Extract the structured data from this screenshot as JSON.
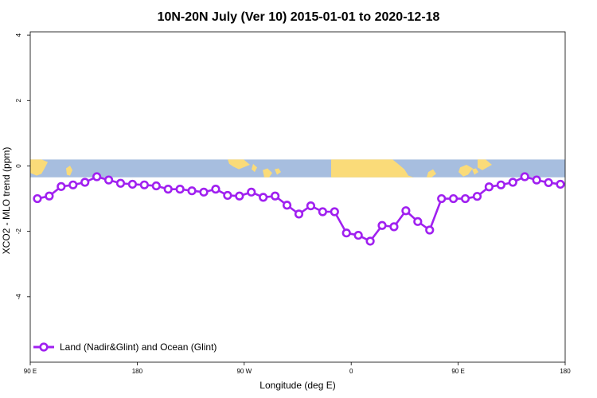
{
  "chart_data": {
    "type": "line",
    "title": "10N-20N July (Ver 10)   2015-01-01 to 2020-12-18",
    "xlabel": "Longitude (deg E)",
    "ylabel": "XCO2 - MLO trend (ppm)",
    "x_ticks": [
      {
        "value": 90,
        "label": "90 E"
      },
      {
        "value": 180,
        "label": "180"
      },
      {
        "value": 270,
        "label": "90 W"
      },
      {
        "value": 360,
        "label": "0"
      },
      {
        "value": 450,
        "label": "90 E"
      },
      {
        "value": 540,
        "label": "180"
      }
    ],
    "y_ticks": [
      -4,
      -2,
      0,
      2,
      4
    ],
    "xlim": [
      90,
      540
    ],
    "ylim": [
      -6,
      4.1
    ],
    "map_band": {
      "ymin": -0.35,
      "ymax": 0.2,
      "ocean_color": "#a7bedf",
      "land_color": "#fadb79"
    },
    "series": [
      {
        "name": "Land (Nadir&Glint) and Ocean (Glint)",
        "color": "#a020f0",
        "x": [
          96,
          106,
          116,
          126,
          136,
          146,
          156,
          166,
          176,
          186,
          196,
          206,
          216,
          226,
          236,
          246,
          256,
          266,
          276,
          286,
          296,
          306,
          316,
          326,
          336,
          346,
          356,
          366,
          376,
          386,
          396,
          406,
          416,
          426,
          436,
          446,
          456,
          466,
          476,
          486,
          496,
          506,
          516,
          526,
          536
        ],
        "y": [
          -1.0,
          -0.92,
          -0.63,
          -0.58,
          -0.5,
          -0.33,
          -0.43,
          -0.53,
          -0.56,
          -0.58,
          -0.61,
          -0.71,
          -0.71,
          -0.76,
          -0.8,
          -0.71,
          -0.9,
          -0.92,
          -0.8,
          -0.96,
          -0.92,
          -1.2,
          -1.47,
          -1.22,
          -1.4,
          -1.4,
          -2.05,
          -2.12,
          -2.3,
          -1.82,
          -1.86,
          -1.37,
          -1.7,
          -1.96,
          -1.0,
          -1.0,
          -1.0,
          -0.93,
          -0.64,
          -0.58,
          -0.5,
          -0.33,
          -0.43,
          -0.51,
          -0.56
        ]
      }
    ],
    "legend_position": "bottom-left"
  }
}
